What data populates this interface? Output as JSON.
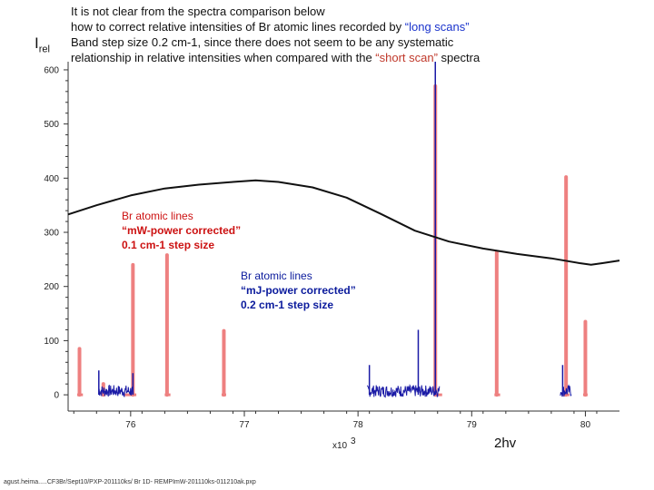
{
  "header": {
    "note_line1": "It is not clear from the spectra comparison below",
    "note_line2_pre": "how to correct relative intensities of Br atomic lines recorded by ",
    "note_line2_hl": "“long scans”",
    "note_line3": "Band  step size 0.2 cm-1, since there does not seem to be any systematic",
    "note_line4_pre": "relationship in relative intensities when compared with the ",
    "note_line4_hl": "“short scan”",
    "note_line4_post": " spectra"
  },
  "annotations": {
    "red_line1": "Br atomic lines",
    "red_line2": "“mW-power corrected”",
    "red_line3": "0.1 cm-1 step size",
    "blue_line1": "Br atomic lines",
    "blue_line2": "“mJ-power corrected”",
    "blue_line3": "0.2 cm-1 step size"
  },
  "footer": "agust.heima.....CF3Br/Sept10/PXP-201110ks/ Br 1D- REMPImW-201110ks-011210ak.pxp",
  "chart_data": {
    "type": "line",
    "title": "",
    "ylabel_main": "I",
    "ylabel_sub": "rel",
    "xlabel_multiplier": "x10",
    "xlabel_multiplier_exp": "3",
    "xlabel": "2hv",
    "xlim": [
      75.45,
      80.3
    ],
    "ylim": [
      -30,
      615
    ],
    "xticks": [
      76,
      77,
      78,
      79,
      80
    ],
    "yticks": [
      0,
      100,
      200,
      300,
      400,
      500,
      600
    ],
    "colors": {
      "red": "#ee8080",
      "blue": "#1a1aa6",
      "black": "#111111"
    },
    "series": [
      {
        "style": "black-curve",
        "x": [
          75.45,
          75.7,
          76.0,
          76.3,
          76.6,
          76.9,
          77.1,
          77.3,
          77.6,
          77.9,
          78.2,
          78.5,
          78.8,
          79.1,
          79.4,
          79.7,
          79.95,
          80.05,
          80.15,
          80.3
        ],
        "y": [
          333,
          350,
          368,
          381,
          388,
          393,
          396,
          393,
          383,
          364,
          334,
          303,
          283,
          270,
          260,
          252,
          243,
          240,
          243,
          248
        ]
      },
      {
        "style": "red-lines",
        "x": [
          75.55,
          75.76,
          76.02,
          76.32,
          76.82,
          78.68,
          79.22,
          79.83,
          80.0
        ],
        "y": [
          85,
          20,
          240,
          258,
          118,
          570,
          263,
          402,
          135
        ]
      },
      {
        "style": "blue-lines",
        "x": [
          75.72,
          76.02,
          78.1,
          78.53,
          78.68,
          79.8
        ],
        "y": [
          45,
          40,
          55,
          120,
          615,
          55
        ]
      }
    ]
  }
}
